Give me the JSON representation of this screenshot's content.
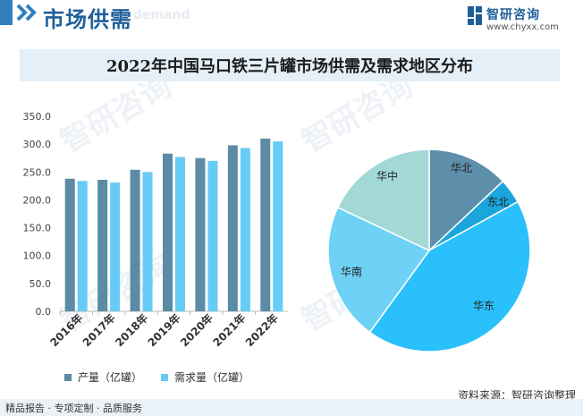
{
  "header": {
    "title": "市场供需",
    "subtitle": "nd demand"
  },
  "logo": {
    "name": "智研咨询",
    "url": "www.chyxx.com"
  },
  "watermark_text": "智研咨询",
  "chart_title": "2022年中国马口铁三片罐市场供需及需求地区分布",
  "chart_data": [
    {
      "type": "bar",
      "categories": [
        "2016年",
        "2017年",
        "2018年",
        "2019年",
        "2020年",
        "2021年",
        "2022年"
      ],
      "series": [
        {
          "name": "产量（亿罐）",
          "color": "#5b8ba5",
          "values": [
            238,
            236,
            254,
            283,
            275,
            298,
            310
          ]
        },
        {
          "name": "需求量（亿罐）",
          "color": "#66ccf5",
          "values": [
            234,
            231,
            250,
            277,
            270,
            293,
            305
          ]
        }
      ],
      "yticks": [
        "0.0",
        "50.0",
        "100.0",
        "150.0",
        "200.0",
        "250.0",
        "300.0",
        "350.0"
      ],
      "ylim": [
        0,
        350
      ],
      "grid": false,
      "legend": "bottom"
    },
    {
      "type": "pie",
      "labels": [
        "华北",
        "东北",
        "华东",
        "华南",
        "华中"
      ],
      "values": [
        13,
        4,
        43,
        22,
        18
      ],
      "colors": [
        "#5d8fab",
        "#1aa6dc",
        "#29c0fb",
        "#6fd1f6",
        "#a2d9d7"
      ],
      "legend": "none"
    }
  ],
  "footer": {
    "left": "精品报告 · 专项定制 · 品质服务",
    "source": "资料来源：智研咨询整理"
  }
}
